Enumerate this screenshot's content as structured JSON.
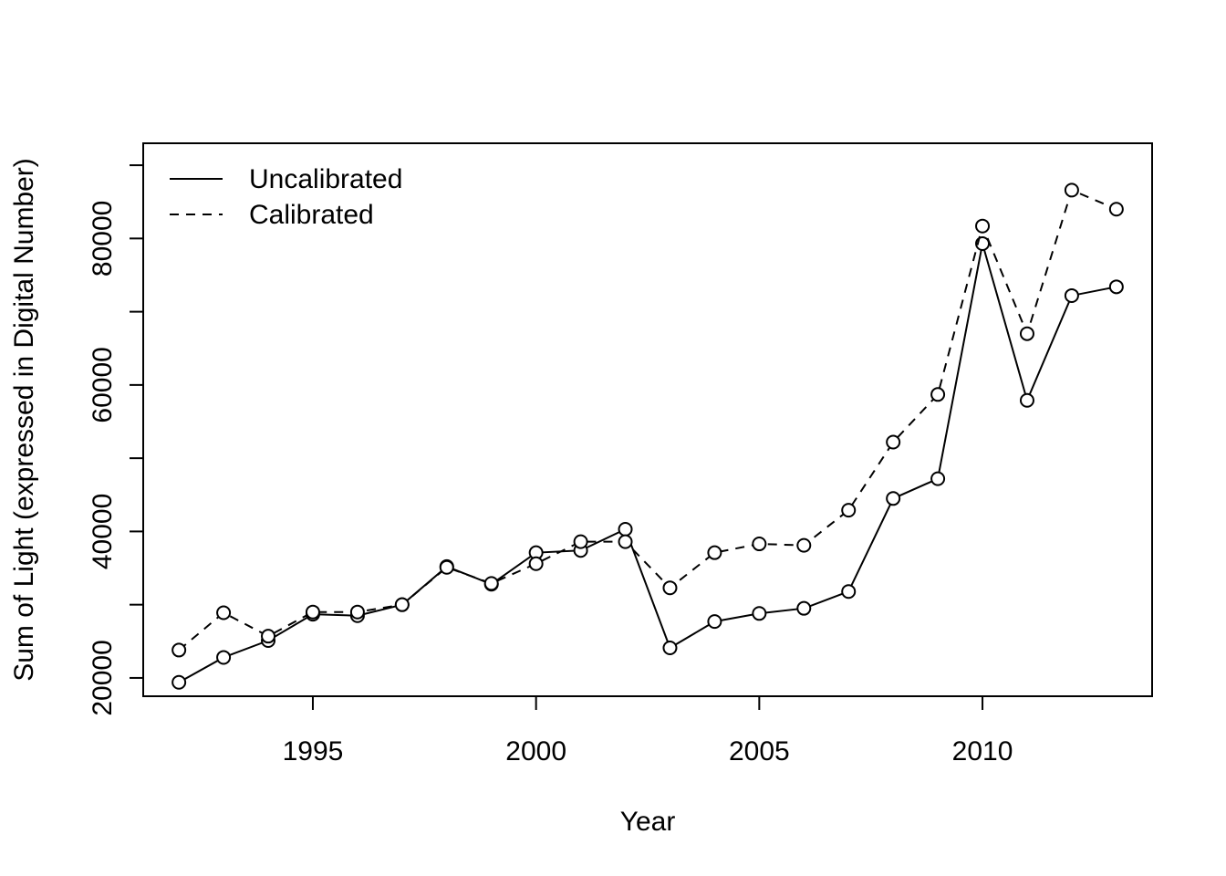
{
  "chart_data": {
    "type": "line",
    "title": "",
    "xlabel": "Year",
    "ylabel": "Sum of Light (expressed in Digital Number)",
    "x": [
      1992,
      1993,
      1994,
      1995,
      1996,
      1997,
      1998,
      1999,
      2000,
      2001,
      2002,
      2003,
      2004,
      2005,
      2006,
      2007,
      2008,
      2009,
      2010,
      2011,
      2012,
      2013
    ],
    "series": [
      {
        "name": "Uncalibrated",
        "line_style": "solid",
        "values": [
          19400,
          22800,
          25100,
          28700,
          28500,
          30000,
          35200,
          32800,
          37100,
          37400,
          40300,
          24100,
          27700,
          28800,
          29500,
          31800,
          44500,
          47200,
          79300,
          57900,
          72200,
          73400
        ]
      },
      {
        "name": "Calibrated",
        "line_style": "dashed",
        "values": [
          23800,
          28900,
          25700,
          29000,
          29000,
          30000,
          35100,
          32900,
          35600,
          38600,
          38600,
          32300,
          37100,
          38300,
          38100,
          42900,
          52200,
          58700,
          81700,
          67000,
          86600,
          84000
        ]
      }
    ],
    "xlim": [
      1991.2,
      2013.8
    ],
    "ylim": [
      17500,
      93000
    ],
    "x_ticks": [
      "1995",
      "2000",
      "2005",
      "2010"
    ],
    "y_ticks": [
      "20000",
      "40000",
      "60000",
      "80000"
    ],
    "legend_position": "top-left",
    "grid": false,
    "colors": {
      "line": "#000000",
      "background": "#ffffff"
    }
  }
}
